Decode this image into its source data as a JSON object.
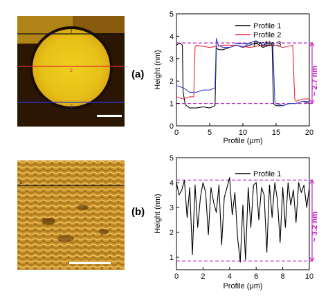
{
  "panels": [
    {
      "label": "(a)"
    },
    {
      "label": "(b)"
    }
  ],
  "chart_data": [
    {
      "type": "line",
      "xlabel": "Profile (μm)",
      "ylabel": "Height (nm)",
      "xlim": [
        0,
        20
      ],
      "ylim": [
        0,
        5
      ],
      "x_ticks": [
        "0",
        "5",
        "10",
        "15",
        "20"
      ],
      "y_ticks": [
        "0",
        "1",
        "2",
        "3",
        "4",
        "5"
      ],
      "legend_position": "top-right",
      "series": [
        {
          "name": "Profile 1",
          "color": "#000000",
          "x": [
            0,
            0.5,
            0.9,
            1.0,
            1.3,
            1.5,
            2,
            3,
            4,
            5,
            5.8,
            6.0,
            6.3,
            7,
            8,
            9,
            10,
            11,
            12,
            13,
            14,
            14.4,
            14.6,
            15,
            16,
            17,
            18,
            19,
            20
          ],
          "y": [
            3.6,
            3.7,
            3.6,
            1.5,
            1.0,
            0.9,
            0.8,
            0.8,
            0.85,
            0.8,
            0.9,
            3.5,
            3.4,
            3.4,
            3.5,
            3.6,
            3.5,
            3.6,
            3.7,
            3.5,
            3.6,
            3.6,
            1.0,
            0.9,
            0.9,
            1.0,
            1.0,
            1.1,
            1.0
          ]
        },
        {
          "name": "Profile 2",
          "color": "#e8283c",
          "x": [
            0,
            1,
            2,
            2.6,
            2.8,
            3,
            5,
            7,
            9,
            11,
            13,
            15,
            16,
            17.5,
            17.8,
            18,
            19,
            20
          ],
          "y": [
            1.3,
            1.2,
            1.3,
            1.3,
            3.5,
            3.6,
            3.5,
            3.6,
            3.6,
            3.5,
            3.6,
            3.6,
            3.5,
            3.6,
            1.2,
            1.1,
            1.2,
            1.2
          ]
        },
        {
          "name": "Profile 3",
          "color": "#3340d8",
          "x": [
            0,
            1,
            2,
            3,
            4,
            5,
            5.8,
            6.0,
            6.3,
            7,
            8,
            9,
            10,
            11,
            12,
            13,
            14,
            14.5,
            14.8,
            15,
            16,
            17,
            18,
            19,
            20
          ],
          "y": [
            1.8,
            1.7,
            1.5,
            1.5,
            1.6,
            1.6,
            1.7,
            3.9,
            3.6,
            3.5,
            3.5,
            3.6,
            3.5,
            3.7,
            3.8,
            3.6,
            3.7,
            3.7,
            1.1,
            1.0,
            0.9,
            1.0,
            1.0,
            1.1,
            1.1
          ]
        }
      ],
      "reference_lines": [
        {
          "y": 3.7,
          "color": "#c020c8",
          "style": "dashed"
        },
        {
          "y": 1.0,
          "color": "#c020c8",
          "style": "dashed"
        }
      ],
      "annotation": {
        "text": "~ 2.7 nm",
        "color": "#c020c8"
      }
    },
    {
      "type": "line",
      "xlabel": "Profile (μm)",
      "ylabel": "Height (nm)",
      "xlim": [
        0,
        10
      ],
      "ylim": [
        0.5,
        5
      ],
      "x_ticks": [
        "0",
        "2",
        "4",
        "6",
        "8",
        "10"
      ],
      "y_ticks": [
        "1",
        "2",
        "3",
        "4",
        "5"
      ],
      "legend_position": "top-right",
      "series": [
        {
          "name": "Profile 1",
          "color": "#000000",
          "x": [
            0.0,
            0.2,
            0.4,
            0.6,
            0.8,
            1.0,
            1.2,
            1.4,
            1.6,
            1.8,
            2.0,
            2.2,
            2.4,
            2.6,
            2.8,
            3.0,
            3.2,
            3.4,
            3.6,
            3.8,
            4.0,
            4.2,
            4.4,
            4.6,
            4.8,
            5.0,
            5.2,
            5.4,
            5.6,
            5.8,
            6.0,
            6.2,
            6.4,
            6.6,
            6.8,
            7.0,
            7.2,
            7.4,
            7.6,
            7.8,
            8.0,
            8.2,
            8.4,
            8.6,
            8.8,
            9.0,
            9.2,
            9.4,
            9.6,
            9.8,
            10.0
          ],
          "y": [
            4.0,
            3.5,
            3.7,
            4.1,
            2.6,
            3.8,
            1.1,
            3.9,
            2.2,
            3.4,
            4.0,
            3.6,
            1.9,
            3.8,
            3.2,
            2.8,
            3.9,
            1.5,
            3.4,
            3.8,
            4.2,
            2.7,
            3.6,
            1.8,
            0.8,
            3.1,
            0.9,
            3.8,
            2.2,
            3.9,
            4.0,
            2.5,
            3.8,
            3.5,
            1.2,
            3.9,
            2.6,
            4.0,
            3.3,
            1.6,
            3.8,
            2.2,
            4.0,
            3.1,
            3.7,
            2.4,
            4.0,
            3.6,
            3.9,
            3.0,
            3.8
          ]
        }
      ],
      "reference_lines": [
        {
          "y": 4.1,
          "color": "#c020c8",
          "style": "dashed"
        },
        {
          "y": 0.85,
          "color": "#c020c8",
          "style": "dashed"
        }
      ],
      "annotation": {
        "text": "~ 3.2 nm",
        "color": "#c020c8"
      }
    }
  ],
  "images": [
    {
      "profile_labels": [
        "1",
        "2",
        "3"
      ]
    },
    {
      "profile_labels": [
        "1"
      ]
    }
  ]
}
